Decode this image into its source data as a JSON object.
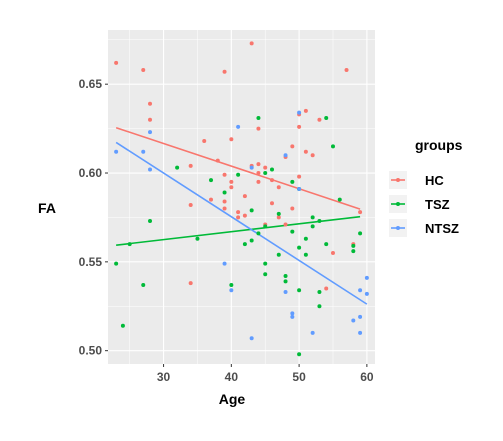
{
  "chart_data": {
    "type": "scatter",
    "xlabel": "Age",
    "ylabel": "FA",
    "xlim": [
      21.8,
      61.2
    ],
    "ylim": [
      0.4925,
      0.6805
    ],
    "xticks": [
      30,
      40,
      50,
      60
    ],
    "yticks": [
      0.5,
      0.55,
      0.6,
      0.65
    ],
    "ytick_labels": [
      "0.50",
      "0.55",
      "0.60",
      "0.65"
    ],
    "grid": true,
    "legend": {
      "title": "groups",
      "position": "right"
    },
    "series": [
      {
        "name": "HC",
        "color": "#F8766D",
        "trend": {
          "x": [
            23,
            59
          ],
          "y": [
            0.6255,
            0.5797
          ]
        },
        "points": [
          [
            23,
            0.662
          ],
          [
            27,
            0.658
          ],
          [
            28,
            0.639
          ],
          [
            28,
            0.63
          ],
          [
            34,
            0.604
          ],
          [
            34,
            0.582
          ],
          [
            34,
            0.538
          ],
          [
            36,
            0.618
          ],
          [
            37,
            0.585
          ],
          [
            38,
            0.607
          ],
          [
            39,
            0.657
          ],
          [
            39,
            0.599
          ],
          [
            39,
            0.584
          ],
          [
            39,
            0.58
          ],
          [
            40,
            0.619
          ],
          [
            40,
            0.595
          ],
          [
            40,
            0.592
          ],
          [
            41,
            0.578
          ],
          [
            41,
            0.575
          ],
          [
            42,
            0.587
          ],
          [
            42,
            0.576
          ],
          [
            43,
            0.673
          ],
          [
            43,
            0.604
          ],
          [
            44,
            0.625
          ],
          [
            44,
            0.605
          ],
          [
            44,
            0.6
          ],
          [
            44,
            0.595
          ],
          [
            45,
            0.603
          ],
          [
            45,
            0.571
          ],
          [
            46,
            0.596
          ],
          [
            46,
            0.583
          ],
          [
            47,
            0.592
          ],
          [
            47,
            0.575
          ],
          [
            48,
            0.609
          ],
          [
            48,
            0.571
          ],
          [
            49,
            0.615
          ],
          [
            49,
            0.58
          ],
          [
            50,
            0.633
          ],
          [
            50,
            0.626
          ],
          [
            50,
            0.598
          ],
          [
            51,
            0.635
          ],
          [
            51,
            0.612
          ],
          [
            52,
            0.61
          ],
          [
            53,
            0.63
          ],
          [
            54,
            0.535
          ],
          [
            55,
            0.555
          ],
          [
            57,
            0.658
          ],
          [
            58,
            0.56
          ],
          [
            59,
            0.578
          ]
        ]
      },
      {
        "name": "TSZ",
        "color": "#00BA38",
        "trend": {
          "x": [
            23,
            59
          ],
          "y": [
            0.5594,
            0.5754
          ]
        },
        "points": [
          [
            23,
            0.549
          ],
          [
            24,
            0.514
          ],
          [
            25,
            0.56
          ],
          [
            27,
            0.537
          ],
          [
            28,
            0.573
          ],
          [
            32,
            0.603
          ],
          [
            35,
            0.563
          ],
          [
            37,
            0.596
          ],
          [
            39,
            0.589
          ],
          [
            40,
            0.537
          ],
          [
            41,
            0.599
          ],
          [
            42,
            0.56
          ],
          [
            43,
            0.579
          ],
          [
            43,
            0.562
          ],
          [
            44,
            0.631
          ],
          [
            44,
            0.566
          ],
          [
            45,
            0.6
          ],
          [
            45,
            0.57
          ],
          [
            45,
            0.549
          ],
          [
            45,
            0.543
          ],
          [
            46,
            0.602
          ],
          [
            47,
            0.577
          ],
          [
            47,
            0.554
          ],
          [
            48,
            0.542
          ],
          [
            48,
            0.539
          ],
          [
            49,
            0.595
          ],
          [
            49,
            0.567
          ],
          [
            50,
            0.591
          ],
          [
            50,
            0.558
          ],
          [
            50,
            0.498
          ],
          [
            50,
            0.534
          ],
          [
            51,
            0.563
          ],
          [
            51,
            0.554
          ],
          [
            52,
            0.575
          ],
          [
            52,
            0.57
          ],
          [
            53,
            0.525
          ],
          [
            53,
            0.573
          ],
          [
            53,
            0.533
          ],
          [
            54,
            0.631
          ],
          [
            54,
            0.56
          ],
          [
            55,
            0.615
          ],
          [
            56,
            0.585
          ],
          [
            58,
            0.559
          ],
          [
            58,
            0.556
          ],
          [
            59,
            0.566
          ]
        ]
      },
      {
        "name": "NTSZ",
        "color": "#619CFF",
        "trend": {
          "x": [
            23,
            60
          ],
          "y": [
            0.6172,
            0.5262
          ]
        },
        "points": [
          [
            23,
            0.612
          ],
          [
            27,
            0.612
          ],
          [
            28,
            0.623
          ],
          [
            28,
            0.602
          ],
          [
            39,
            0.549
          ],
          [
            40,
            0.534
          ],
          [
            41,
            0.626
          ],
          [
            43,
            0.603
          ],
          [
            43,
            0.507
          ],
          [
            48,
            0.61
          ],
          [
            48,
            0.533
          ],
          [
            49,
            0.521
          ],
          [
            49,
            0.519
          ],
          [
            50,
            0.634
          ],
          [
            50,
            0.591
          ],
          [
            52,
            0.51
          ],
          [
            58,
            0.517
          ],
          [
            59,
            0.534
          ],
          [
            59,
            0.519
          ],
          [
            59,
            0.51
          ],
          [
            60,
            0.541
          ],
          [
            60,
            0.532
          ]
        ]
      }
    ]
  }
}
